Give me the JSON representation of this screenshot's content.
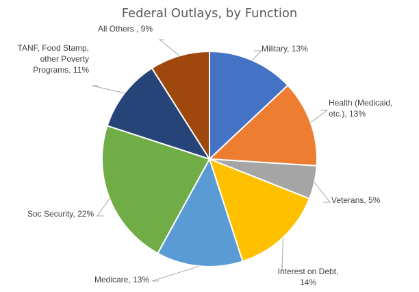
{
  "chart_data": {
    "type": "pie",
    "title": "Federal Outlays, by Function",
    "slices": [
      {
        "name": "Military",
        "value": 13,
        "label": [
          "Military, 13%"
        ],
        "color": "#4472C4"
      },
      {
        "name": "Health (Medicaid, etc.)",
        "value": 13,
        "label": [
          "Health (Medicaid,",
          "etc.), 13%"
        ],
        "color": "#ED7D31"
      },
      {
        "name": "Veterans",
        "value": 5,
        "label": [
          "Veterans, 5%"
        ],
        "color": "#A5A5A5"
      },
      {
        "name": "Interest on Debt",
        "value": 14,
        "label": [
          "Interest on Debt,",
          "14%"
        ],
        "color": "#FFC000"
      },
      {
        "name": "Medicare",
        "value": 13,
        "label": [
          "Medicare, 13%"
        ],
        "color": "#5B9BD5"
      },
      {
        "name": "Soc Security",
        "value": 22,
        "label": [
          "Soc Security, 22%"
        ],
        "color": "#70AD47"
      },
      {
        "name": "TANF, Food Stamp, other Poverty Programs",
        "value": 11,
        "label": [
          "TANF, Food Stamp,",
          "other Poverty",
          "Programs, 11%"
        ],
        "color": "#264478"
      },
      {
        "name": "All Others",
        "value": 9,
        "label": [
          "All Others , 9%"
        ],
        "color": "#9E480E"
      }
    ],
    "start_angle": "12 o'clock",
    "direction": "clockwise",
    "legend": "none"
  }
}
